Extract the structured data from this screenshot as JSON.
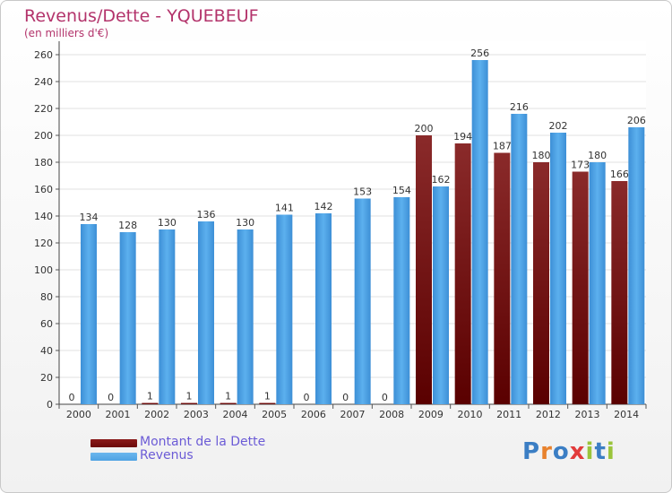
{
  "title": "Revenus/Dette - YQUEBEUF",
  "subtitle": "(en milliers d'€)",
  "logo": {
    "text": "Proxiti",
    "letters": [
      "P",
      "r",
      "o",
      "x",
      "i",
      "t",
      "i"
    ],
    "colors": [
      "#3b7ec4",
      "#e8822d",
      "#3b7ec4",
      "#e23b3b",
      "#9ac43b",
      "#3b7ec4",
      "#9ac43b"
    ]
  },
  "legend": {
    "items": [
      {
        "label": "Montant de la Dette",
        "color": "#6b0a0a"
      },
      {
        "label": "Revenus",
        "color": "#4fa3e3"
      }
    ]
  },
  "chart_data": {
    "type": "bar",
    "categories": [
      "2000",
      "2001",
      "2002",
      "2003",
      "2004",
      "2005",
      "2006",
      "2007",
      "2008",
      "2009",
      "2010",
      "2011",
      "2012",
      "2013",
      "2014"
    ],
    "series": [
      {
        "name": "Montant de la Dette",
        "color": "#6b0a0a",
        "values": [
          0,
          0,
          1,
          1,
          1,
          1,
          0,
          0,
          0,
          200,
          194,
          187,
          180,
          173,
          166
        ],
        "labels": [
          "0",
          "0",
          "1",
          "1",
          "1",
          "1",
          "0",
          "0",
          "0",
          "200",
          "194",
          "187",
          "180",
          "173",
          "166"
        ]
      },
      {
        "name": "Revenus",
        "color": "#4fa3e3",
        "values": [
          134,
          128,
          130,
          136,
          130,
          141,
          142,
          153,
          154,
          162,
          256,
          216,
          202,
          180,
          206
        ],
        "labels": [
          "134",
          "128",
          "130",
          "136",
          "130",
          "141",
          "142",
          "153",
          "154",
          "162",
          "256",
          "216",
          "202",
          "180",
          "206"
        ]
      }
    ],
    "yticks": [
      0,
      20,
      40,
      60,
      80,
      100,
      120,
      140,
      160,
      180,
      200,
      220,
      240,
      260
    ],
    "ylim": [
      0,
      270
    ],
    "grid": true
  }
}
